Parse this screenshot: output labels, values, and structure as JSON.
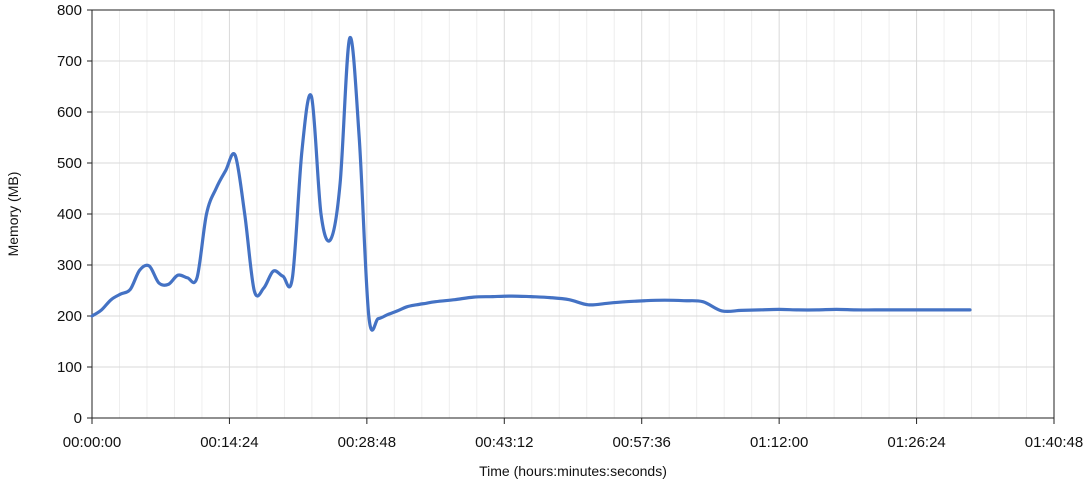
{
  "chart_data": {
    "type": "line",
    "xlabel": "Time (hours:minutes:seconds)",
    "ylabel": "Memory (MB)",
    "xlim": [
      0,
      6048
    ],
    "ylim": [
      0,
      800
    ],
    "x_ticks": [
      0,
      864,
      1728,
      2592,
      3456,
      4320,
      5184,
      6048
    ],
    "x_tick_labels": [
      "00:00:00",
      "00:14:24",
      "00:28:48",
      "00:43:12",
      "00:57:36",
      "01:12:00",
      "01:26:24",
      "01:40:48"
    ],
    "y_ticks": [
      0,
      100,
      200,
      300,
      400,
      500,
      600,
      700,
      800
    ],
    "grid": true,
    "line_color": "#4472C4",
    "series": [
      {
        "x": [
          0,
          60,
          120,
          180,
          240,
          300,
          360,
          420,
          480,
          540,
          600,
          660,
          720,
          780,
          840,
          900,
          960,
          1020,
          1080,
          1140,
          1200,
          1260,
          1320,
          1380,
          1440,
          1500,
          1560,
          1620,
          1680,
          1740,
          1800,
          1860,
          1920,
          1980,
          2040,
          2100,
          2160,
          2280,
          2400,
          2520,
          2640,
          2760,
          2880,
          3000,
          3120,
          3240,
          3360,
          3480,
          3600,
          3720,
          3840,
          3960,
          4080,
          4200,
          4320,
          4440,
          4560,
          4680,
          4800,
          4920,
          5040,
          5160,
          5280,
          5400,
          5520
        ],
        "y": [
          200,
          212,
          232,
          243,
          252,
          290,
          298,
          265,
          262,
          280,
          275,
          275,
          400,
          450,
          485,
          515,
          400,
          250,
          255,
          288,
          278,
          275,
          525,
          630,
          400,
          350,
          460,
          745,
          550,
          200,
          195,
          203,
          210,
          218,
          222,
          225,
          228,
          232,
          237,
          238,
          239,
          238,
          236,
          232,
          222,
          225,
          228,
          230,
          231,
          230,
          228,
          210,
          211,
          212,
          213,
          212,
          212,
          213,
          212,
          212,
          212,
          212,
          212,
          212,
          212
        ]
      }
    ]
  }
}
